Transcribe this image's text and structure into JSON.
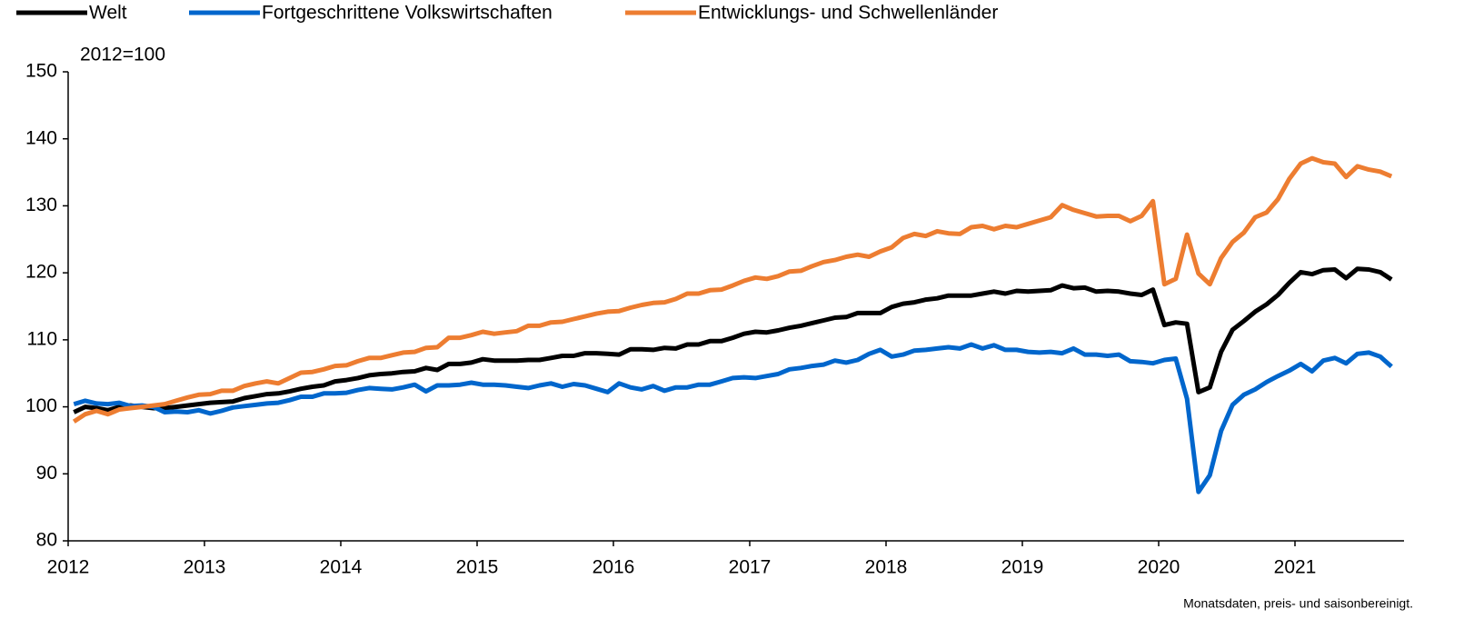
{
  "chart_data": {
    "type": "line",
    "y_label": "2012=100",
    "note": "Monatsdaten, preis- und saisonbereinigt.",
    "xlim": [
      2012,
      2021.8
    ],
    "xticks": [
      2012,
      2013,
      2014,
      2015,
      2016,
      2017,
      2018,
      2019,
      2020,
      2021
    ],
    "ylim": [
      80,
      150
    ],
    "yticks": [
      80,
      90,
      100,
      110,
      120,
      130,
      140,
      150
    ],
    "grid": false,
    "legend": "top-left",
    "x": [
      2012.042,
      2012.125,
      2012.208,
      2012.292,
      2012.375,
      2012.458,
      2012.542,
      2012.625,
      2012.708,
      2012.792,
      2012.875,
      2012.958,
      2013.042,
      2013.125,
      2013.208,
      2013.292,
      2013.375,
      2013.458,
      2013.542,
      2013.625,
      2013.708,
      2013.792,
      2013.875,
      2013.958,
      2014.042,
      2014.125,
      2014.208,
      2014.292,
      2014.375,
      2014.458,
      2014.542,
      2014.625,
      2014.708,
      2014.792,
      2014.875,
      2014.958,
      2015.042,
      2015.125,
      2015.208,
      2015.292,
      2015.375,
      2015.458,
      2015.542,
      2015.625,
      2015.708,
      2015.792,
      2015.875,
      2015.958,
      2016.042,
      2016.125,
      2016.208,
      2016.292,
      2016.375,
      2016.458,
      2016.542,
      2016.625,
      2016.708,
      2016.792,
      2016.875,
      2016.958,
      2017.042,
      2017.125,
      2017.208,
      2017.292,
      2017.375,
      2017.458,
      2017.542,
      2017.625,
      2017.708,
      2017.792,
      2017.875,
      2017.958,
      2018.042,
      2018.125,
      2018.208,
      2018.292,
      2018.375,
      2018.458,
      2018.542,
      2018.625,
      2018.708,
      2018.792,
      2018.875,
      2018.958,
      2019.042,
      2019.125,
      2019.208,
      2019.292,
      2019.375,
      2019.458,
      2019.542,
      2019.625,
      2019.708,
      2019.792,
      2019.875,
      2019.958,
      2020.042,
      2020.125,
      2020.208,
      2020.292,
      2020.375,
      2020.458,
      2020.542,
      2020.625,
      2020.708,
      2020.792,
      2020.875,
      2020.958,
      2021.042,
      2021.125,
      2021.208,
      2021.292,
      2021.375,
      2021.458,
      2021.542,
      2021.625,
      2021.708
    ],
    "series": [
      {
        "name": "Welt",
        "color": "#000000",
        "values": [
          99.2,
          100.0,
          99.8,
          99.5,
          100.0,
          100.2,
          100.0,
          99.8,
          99.8,
          100.0,
          100.2,
          100.4,
          100.6,
          100.7,
          100.8,
          101.3,
          101.6,
          101.9,
          102.0,
          102.3,
          102.7,
          103.0,
          103.2,
          103.8,
          104.0,
          104.3,
          104.7,
          104.9,
          105.0,
          105.2,
          105.3,
          105.8,
          105.5,
          106.4,
          106.4,
          106.6,
          107.1,
          106.9,
          106.9,
          106.9,
          107.0,
          107.0,
          107.3,
          107.6,
          107.6,
          108.0,
          108.0,
          107.9,
          107.8,
          108.6,
          108.6,
          108.5,
          108.8,
          108.7,
          109.3,
          109.3,
          109.8,
          109.8,
          110.3,
          110.9,
          111.2,
          111.1,
          111.4,
          111.8,
          112.1,
          112.5,
          112.9,
          113.3,
          113.4,
          114.0,
          114.0,
          114.0,
          114.9,
          115.4,
          115.6,
          116.0,
          116.2,
          116.6,
          116.6,
          116.6,
          116.9,
          117.2,
          116.9,
          117.3,
          117.2,
          117.3,
          117.4,
          118.1,
          117.7,
          117.8,
          117.2,
          117.3,
          117.2,
          116.9,
          116.7,
          117.5,
          112.2,
          112.6,
          112.4,
          102.2,
          102.9,
          108.2,
          111.5,
          112.8,
          114.2,
          115.3,
          116.7,
          118.5,
          120.1,
          119.8,
          120.4,
          120.5,
          119.2,
          120.6,
          120.5,
          120.1,
          119.0
        ]
      },
      {
        "name": "Fortgeschrittene Volkswirtschaften",
        "color": "#0066cc",
        "values": [
          100.4,
          100.9,
          100.5,
          100.4,
          100.6,
          100.1,
          100.2,
          100.0,
          99.2,
          99.3,
          99.2,
          99.5,
          99.0,
          99.4,
          99.9,
          100.1,
          100.3,
          100.5,
          100.6,
          101.0,
          101.5,
          101.5,
          102.0,
          102.0,
          102.1,
          102.5,
          102.8,
          102.7,
          102.6,
          102.9,
          103.3,
          102.3,
          103.2,
          103.2,
          103.3,
          103.6,
          103.3,
          103.3,
          103.2,
          103.0,
          102.8,
          103.2,
          103.5,
          103.0,
          103.4,
          103.2,
          102.7,
          102.2,
          103.5,
          102.9,
          102.6,
          103.1,
          102.4,
          102.9,
          102.9,
          103.3,
          103.3,
          103.8,
          104.3,
          104.4,
          104.3,
          104.6,
          104.9,
          105.6,
          105.8,
          106.1,
          106.3,
          106.9,
          106.6,
          107.0,
          107.9,
          108.5,
          107.5,
          107.8,
          108.4,
          108.5,
          108.7,
          108.9,
          108.7,
          109.3,
          108.7,
          109.2,
          108.5,
          108.5,
          108.2,
          108.1,
          108.2,
          108.0,
          108.7,
          107.8,
          107.8,
          107.6,
          107.8,
          106.8,
          106.7,
          106.5,
          107.0,
          107.2,
          101.2,
          87.3,
          89.8,
          96.4,
          100.3,
          101.8,
          102.6,
          103.7,
          104.6,
          105.4,
          106.4,
          105.3,
          106.9,
          107.3,
          106.5,
          107.9,
          108.1,
          107.5,
          106.0
        ]
      },
      {
        "name": "Entwicklungs- und Schwellenländer",
        "color": "#ed7d31",
        "values": [
          97.8,
          98.9,
          99.4,
          98.9,
          99.6,
          99.8,
          100.0,
          100.2,
          100.4,
          100.9,
          101.4,
          101.8,
          101.9,
          102.4,
          102.4,
          103.1,
          103.5,
          103.8,
          103.5,
          104.3,
          105.1,
          105.2,
          105.6,
          106.1,
          106.2,
          106.8,
          107.3,
          107.3,
          107.7,
          108.1,
          108.2,
          108.8,
          108.9,
          110.3,
          110.3,
          110.7,
          111.2,
          110.9,
          111.1,
          111.3,
          112.1,
          112.1,
          112.6,
          112.7,
          113.1,
          113.5,
          113.9,
          114.2,
          114.3,
          114.8,
          115.2,
          115.5,
          115.6,
          116.1,
          116.9,
          116.9,
          117.4,
          117.5,
          118.1,
          118.8,
          119.3,
          119.1,
          119.5,
          120.2,
          120.3,
          121.0,
          121.6,
          121.9,
          122.4,
          122.7,
          122.4,
          123.2,
          123.8,
          125.2,
          125.8,
          125.5,
          126.2,
          125.9,
          125.8,
          126.8,
          127.0,
          126.5,
          127.0,
          126.8,
          127.3,
          127.8,
          128.3,
          130.1,
          129.4,
          128.9,
          128.4,
          128.5,
          128.5,
          127.7,
          128.5,
          130.7,
          118.3,
          119.1,
          125.7,
          119.9,
          118.3,
          122.2,
          124.6,
          126.0,
          128.3,
          129.0,
          131.0,
          134.0,
          136.3,
          137.1,
          136.5,
          136.3,
          134.3,
          135.9,
          135.4,
          135.1,
          134.4
        ]
      }
    ]
  }
}
